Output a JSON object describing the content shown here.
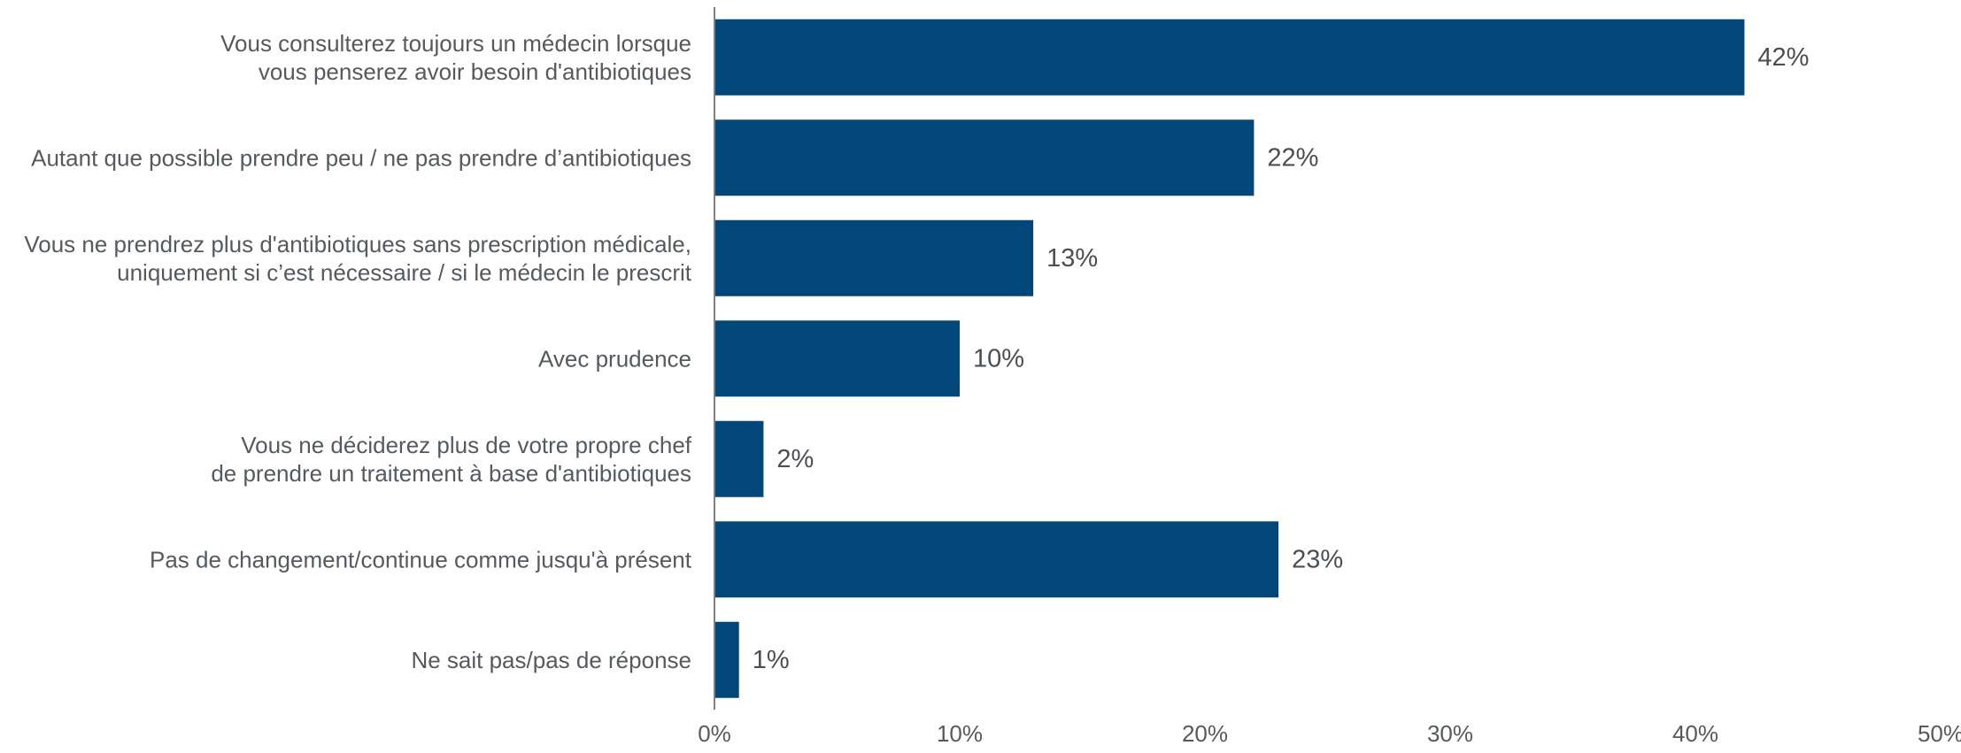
{
  "chart_data": {
    "type": "bar",
    "orientation": "horizontal",
    "categories": [
      [
        "Vous consulterez toujours un médecin lorsque",
        "vous penserez avoir besoin d'antibiotiques"
      ],
      [
        "Autant que possible prendre peu / ne pas prendre d’antibiotiques"
      ],
      [
        "Vous ne prendrez plus d'antibiotiques sans prescription médicale,",
        "uniquement si c’est nécessaire / si le médecin le prescrit"
      ],
      [
        "Avec prudence"
      ],
      [
        "Vous ne déciderez plus de votre propre chef",
        "de prendre un traitement à base d'antibiotiques"
      ],
      [
        "Pas de changement/continue comme jusqu'à présent"
      ],
      [
        "Ne sait pas/pas de réponse"
      ]
    ],
    "values": [
      42,
      22,
      13,
      10,
      2,
      23,
      1
    ],
    "value_labels": [
      "42%",
      "22%",
      "13%",
      "10%",
      "2%",
      "23%",
      "1%"
    ],
    "xlim": [
      0,
      50
    ],
    "x_ticks": [
      0,
      10,
      20,
      30,
      40,
      50
    ],
    "x_tick_labels": [
      "0%",
      "10%",
      "20%",
      "30%",
      "40%",
      "50%"
    ],
    "bar_color": "#02477A",
    "grid": false,
    "title": "",
    "xlabel": "",
    "ylabel": ""
  }
}
